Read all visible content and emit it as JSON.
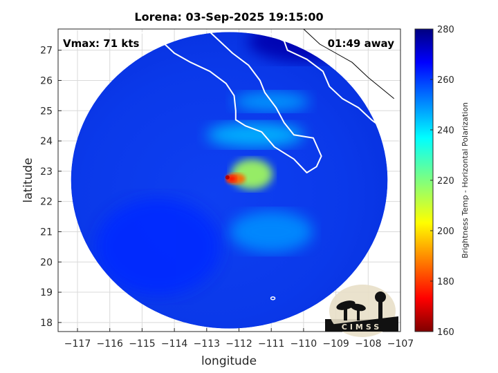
{
  "chart_data": {
    "type": "heatmap",
    "title": "Lorena: 03-Sep-2025 19:15:00",
    "xlabel": "longitude",
    "ylabel": "latitude",
    "xlim": [
      -117.6,
      -107
    ],
    "ylim": [
      17.7,
      27.7
    ],
    "xticks": [
      -117,
      -116,
      -115,
      -114,
      -113,
      -112,
      -111,
      -110,
      -109,
      -108,
      -107
    ],
    "yticks": [
      18,
      19,
      20,
      21,
      22,
      23,
      24,
      25,
      26,
      27
    ],
    "grid": true,
    "annotations": {
      "vmax": "Vmax: 71 kts",
      "time_away": "01:49 away"
    },
    "colorbar": {
      "label": "Brightness Temp - Horizontal Polarization",
      "range": [
        160,
        280
      ],
      "ticks": [
        160,
        180,
        200,
        220,
        240,
        260,
        280
      ],
      "colormap": "jet"
    },
    "swath": {
      "center_lon": -112.3,
      "center_lat": 22.7,
      "radius_deg": 4.9
    },
    "storm_center": {
      "lon": -112.1,
      "lat": 22.75
    },
    "field_regions": [
      {
        "name": "eye region",
        "lon": -112.1,
        "lat": 22.75,
        "tb": 185
      },
      {
        "name": "inner eyewall band",
        "lon": -111.6,
        "lat": 22.9,
        "tb": 215
      },
      {
        "name": "spiral band north",
        "lon": -111.5,
        "lat": 24.2,
        "tb": 245
      },
      {
        "name": "spiral band gulf",
        "lon": -111.0,
        "lat": 25.3,
        "tb": 248
      },
      {
        "name": "outer band south",
        "lon": -111.0,
        "lat": 21.0,
        "tb": 250
      },
      {
        "name": "background ocean",
        "lon": -114.5,
        "lat": 20.5,
        "tb": 262
      },
      {
        "name": "land north",
        "lon": -110.0,
        "lat": 27.3,
        "tb": 275
      }
    ]
  },
  "logo": {
    "text": "CIMSS"
  },
  "colors": {
    "background": "#ffffff",
    "coastline": "#ffffff",
    "grid": "#d9d9d9",
    "outside_coast": "#000000"
  }
}
